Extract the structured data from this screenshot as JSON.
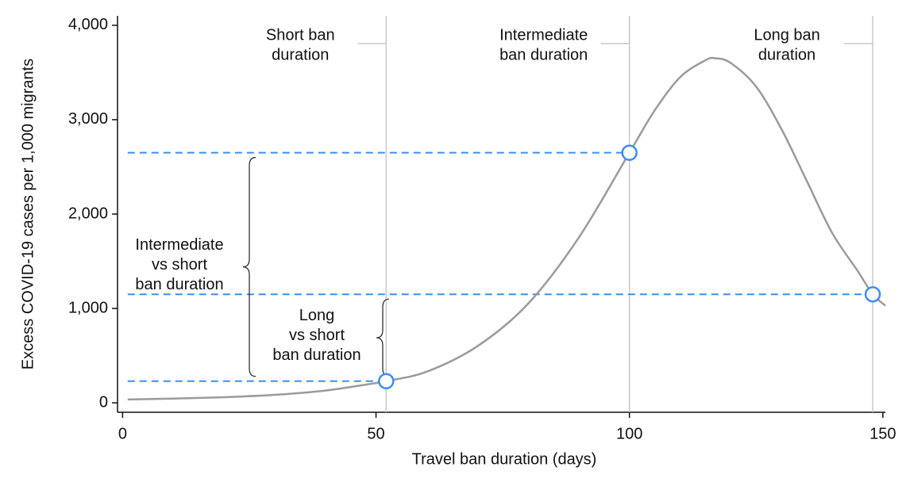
{
  "chart_data": {
    "type": "line",
    "x_label": "Travel ban duration (days)",
    "y_label": "Excess COVID-19 cases per 1,000 migrants",
    "x": [
      1,
      10,
      20,
      30,
      40,
      50,
      52,
      60,
      70,
      80,
      90,
      100,
      105,
      110,
      115,
      117,
      120,
      125,
      130,
      135,
      140,
      145,
      148,
      150.5
    ],
    "series": [
      {
        "color": "#9b9b9b",
        "values": [
          35,
          45,
          60,
          85,
          130,
          210,
          230,
          330,
          600,
          1050,
          1750,
          2650,
          3100,
          3450,
          3630,
          3650,
          3600,
          3350,
          2900,
          2350,
          1800,
          1400,
          1150,
          1030
        ]
      }
    ],
    "markers": {
      "color": "#3d8ef0",
      "x": [
        52,
        100,
        148
      ],
      "values": [
        230,
        2650,
        1150
      ]
    },
    "region_labels": [
      [
        "Short ban",
        "duration"
      ],
      [
        "Intermediate",
        "ban duration"
      ],
      [
        "Long ban",
        "duration"
      ]
    ],
    "brace_labels": [
      [
        "Intermediate",
        "vs short",
        "ban duration"
      ],
      [
        "Long",
        "vs short",
        "ban duration"
      ]
    ],
    "xlim": [
      -1,
      150.5
    ],
    "ylim": [
      -100,
      4100
    ],
    "xticks": [
      0,
      50,
      100,
      150
    ],
    "yticks": [
      0,
      {
        "value": 1000,
        "label": "1,000"
      },
      {
        "value": 2000,
        "label": "2,000"
      },
      {
        "value": 3000,
        "label": "3,000"
      },
      {
        "value": 4000,
        "label": "4,000"
      }
    ]
  }
}
